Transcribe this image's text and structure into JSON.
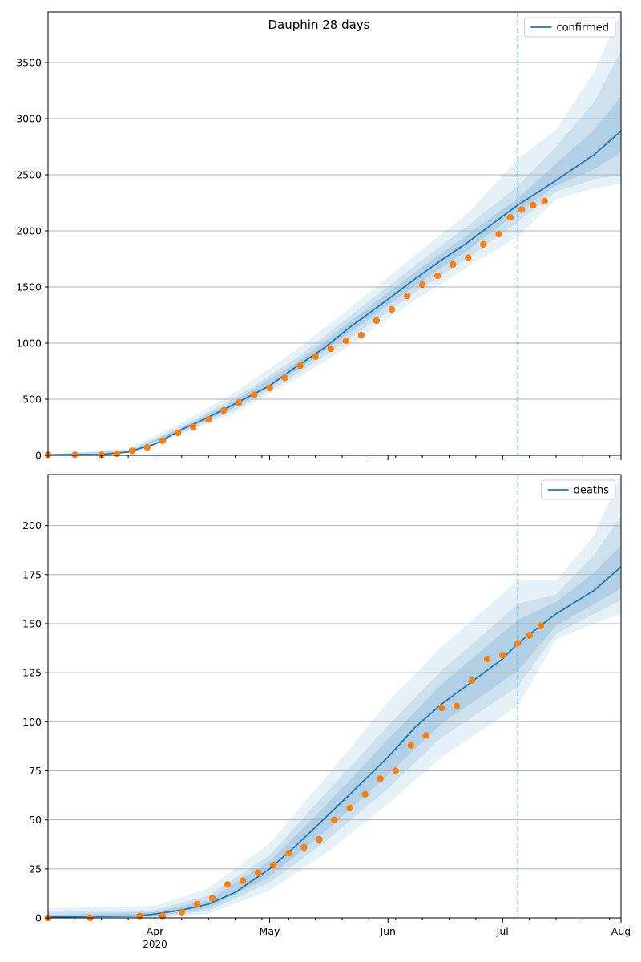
{
  "figure": {
    "title": "Dauphin 28 days"
  },
  "x_axis": {
    "tick_labels": [
      "Apr",
      "May",
      "Jun",
      "Jul",
      "Aug"
    ],
    "tick_dates": [
      "2020-04-01",
      "2020-05-01",
      "2020-06-01",
      "2020-07-01",
      "2020-08-01"
    ],
    "year_label": "2020",
    "range": [
      "2020-03-04",
      "2020-08-01"
    ]
  },
  "chart_data": [
    {
      "type": "line",
      "legend": "confirmed",
      "legend_position": "upper-right",
      "grid": "y",
      "ylim": [
        0,
        3950
      ],
      "yticks": [
        0,
        500,
        1000,
        1500,
        2000,
        2500,
        3000,
        3500
      ],
      "forecast_start": "2020-07-05",
      "colors": {
        "model": "#1f77b4",
        "observed": "#ff7f0e"
      },
      "model_line": {
        "x": [
          "2020-03-04",
          "2020-03-18",
          "2020-03-25",
          "2020-04-01",
          "2020-04-08",
          "2020-04-15",
          "2020-04-22",
          "2020-05-01",
          "2020-05-08",
          "2020-05-15",
          "2020-05-22",
          "2020-06-01",
          "2020-06-08",
          "2020-06-15",
          "2020-06-22",
          "2020-07-01",
          "2020-07-05",
          "2020-07-15",
          "2020-07-25",
          "2020-08-01"
        ],
        "y": [
          5,
          8,
          30,
          100,
          230,
          340,
          460,
          620,
          790,
          950,
          1140,
          1390,
          1570,
          1740,
          1900,
          2130,
          2230,
          2450,
          2680,
          2890
        ]
      },
      "bands": [
        {
          "x": [
            "2020-03-04",
            "2020-03-25",
            "2020-04-08",
            "2020-04-22",
            "2020-05-08",
            "2020-05-22",
            "2020-06-08",
            "2020-06-22",
            "2020-07-05",
            "2020-07-15",
            "2020-07-25",
            "2020-08-01"
          ],
          "lower": [
            0,
            20,
            190,
            380,
            680,
            980,
            1380,
            1680,
            1950,
            2280,
            2380,
            2420
          ],
          "upper": [
            10,
            60,
            290,
            560,
            940,
            1310,
            1780,
            2160,
            2640,
            2900,
            3420,
            3950
          ]
        },
        {
          "x": [
            "2020-03-04",
            "2020-03-25",
            "2020-04-08",
            "2020-04-22",
            "2020-05-08",
            "2020-05-22",
            "2020-06-08",
            "2020-06-22",
            "2020-07-05",
            "2020-07-15",
            "2020-07-25",
            "2020-08-01"
          ],
          "lower": [
            2,
            24,
            205,
            405,
            720,
            1040,
            1450,
            1760,
            2080,
            2350,
            2460,
            2500
          ],
          "upper": [
            8,
            45,
            260,
            515,
            865,
            1240,
            1690,
            2050,
            2400,
            2750,
            3150,
            3600
          ]
        },
        {
          "x": [
            "2020-03-04",
            "2020-03-25",
            "2020-04-08",
            "2020-04-22",
            "2020-05-08",
            "2020-05-22",
            "2020-06-08",
            "2020-06-22",
            "2020-07-05",
            "2020-07-15",
            "2020-07-25",
            "2020-08-01"
          ],
          "lower": [
            3,
            27,
            215,
            430,
            755,
            1090,
            1510,
            1830,
            2170,
            2400,
            2550,
            2700
          ],
          "upper": [
            7,
            36,
            245,
            490,
            825,
            1190,
            1630,
            1970,
            2290,
            2600,
            2900,
            3200
          ]
        }
      ],
      "observed": {
        "x": [
          "2020-03-04",
          "2020-03-11",
          "2020-03-18",
          "2020-03-22",
          "2020-03-26",
          "2020-03-30",
          "2020-04-03",
          "2020-04-07",
          "2020-04-11",
          "2020-04-15",
          "2020-04-19",
          "2020-04-23",
          "2020-04-27",
          "2020-05-01",
          "2020-05-05",
          "2020-05-09",
          "2020-05-13",
          "2020-05-17",
          "2020-05-21",
          "2020-05-25",
          "2020-05-29",
          "2020-06-02",
          "2020-06-06",
          "2020-06-10",
          "2020-06-14",
          "2020-06-18",
          "2020-06-22",
          "2020-06-26",
          "2020-06-30",
          "2020-07-03",
          "2020-07-06",
          "2020-07-09",
          "2020-07-12"
        ],
        "y": [
          5,
          5,
          5,
          15,
          40,
          70,
          130,
          200,
          250,
          320,
          400,
          470,
          540,
          600,
          690,
          800,
          880,
          950,
          1020,
          1070,
          1200,
          1300,
          1420,
          1520,
          1600,
          1700,
          1760,
          1880,
          1970,
          2120,
          2190,
          2230,
          2265
        ]
      }
    },
    {
      "type": "line",
      "legend": "deaths",
      "legend_position": "upper-right",
      "grid": "y",
      "ylim": [
        0,
        226
      ],
      "yticks": [
        0,
        25,
        50,
        75,
        100,
        125,
        150,
        175,
        200
      ],
      "forecast_start": "2020-07-05",
      "colors": {
        "model": "#1f77b4",
        "observed": "#ff7f0e"
      },
      "model_line": {
        "x": [
          "2020-03-04",
          "2020-03-27",
          "2020-04-01",
          "2020-04-08",
          "2020-04-15",
          "2020-04-22",
          "2020-05-01",
          "2020-05-08",
          "2020-05-15",
          "2020-05-22",
          "2020-06-01",
          "2020-06-08",
          "2020-06-15",
          "2020-06-22",
          "2020-07-01",
          "2020-07-05",
          "2020-07-15",
          "2020-07-25",
          "2020-08-01"
        ],
        "y": [
          0.5,
          1,
          2,
          4,
          7,
          13,
          25,
          37,
          50,
          63,
          82,
          97,
          109,
          119,
          132,
          140,
          155,
          167,
          179
        ]
      },
      "bands": [
        {
          "x": [
            "2020-03-04",
            "2020-04-01",
            "2020-04-15",
            "2020-05-01",
            "2020-05-15",
            "2020-06-01",
            "2020-06-15",
            "2020-07-05",
            "2020-07-15",
            "2020-07-25",
            "2020-08-01"
          ],
          "lower": [
            0,
            0,
            2,
            14,
            32,
            58,
            82,
            108,
            142,
            150,
            155
          ],
          "upper": [
            5,
            6,
            15,
            38,
            70,
            110,
            138,
            172,
            172,
            195,
            226
          ]
        },
        {
          "x": [
            "2020-03-04",
            "2020-04-01",
            "2020-04-15",
            "2020-05-01",
            "2020-05-15",
            "2020-06-01",
            "2020-06-15",
            "2020-07-05",
            "2020-07-15",
            "2020-07-25",
            "2020-08-01"
          ],
          "lower": [
            0,
            0.5,
            3.5,
            18,
            38,
            66,
            92,
            118,
            145,
            155,
            162
          ],
          "upper": [
            3,
            4,
            11.5,
            32,
            62,
            98,
            126,
            160,
            165,
            185,
            205
          ]
        },
        {
          "x": [
            "2020-03-04",
            "2020-04-01",
            "2020-04-15",
            "2020-05-01",
            "2020-05-15",
            "2020-06-01",
            "2020-06-15",
            "2020-07-05",
            "2020-07-15",
            "2020-07-25",
            "2020-08-01"
          ],
          "lower": [
            0,
            1,
            5,
            21,
            43,
            73,
            99,
            126,
            149,
            160,
            168
          ],
          "upper": [
            1.5,
            3,
            9,
            29,
            56,
            91,
            119,
            152,
            161,
            176,
            190
          ]
        }
      ],
      "observed": {
        "x": [
          "2020-03-04",
          "2020-03-15",
          "2020-03-28",
          "2020-04-03",
          "2020-04-08",
          "2020-04-12",
          "2020-04-16",
          "2020-04-20",
          "2020-04-24",
          "2020-04-28",
          "2020-05-02",
          "2020-05-06",
          "2020-05-10",
          "2020-05-14",
          "2020-05-18",
          "2020-05-22",
          "2020-05-26",
          "2020-05-30",
          "2020-06-03",
          "2020-06-07",
          "2020-06-11",
          "2020-06-15",
          "2020-06-19",
          "2020-06-23",
          "2020-06-27",
          "2020-07-01",
          "2020-07-05",
          "2020-07-08",
          "2020-07-11"
        ],
        "y": [
          0,
          0,
          1,
          1,
          3,
          7,
          10,
          17,
          19,
          23,
          27,
          33,
          36,
          40,
          50,
          56,
          63,
          71,
          75,
          88,
          93,
          107,
          108,
          121,
          132,
          134,
          140,
          144,
          149
        ]
      }
    }
  ]
}
